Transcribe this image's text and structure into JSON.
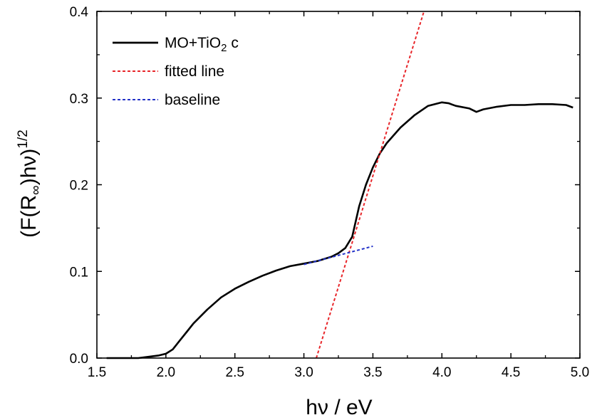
{
  "chart_data": {
    "type": "line",
    "xlabel": "hν / eV",
    "ylabel_base": "(F(R",
    "ylabel_sub": "∞",
    "ylabel_mid": ")hν)",
    "ylabel_sup": "1/2",
    "xlim": [
      1.5,
      5.0
    ],
    "ylim": [
      0.0,
      0.4
    ],
    "xticks": [
      1.5,
      2.0,
      2.5,
      3.0,
      3.5,
      4.0,
      4.5,
      5.0
    ],
    "yticks": [
      0.0,
      0.1,
      0.2,
      0.3,
      0.4
    ],
    "xtick_labels": [
      "1.5",
      "2.0",
      "2.5",
      "3.0",
      "3.5",
      "4.0",
      "4.5",
      "5.0"
    ],
    "ytick_labels": [
      "0.0",
      "0.1",
      "0.2",
      "0.3",
      "0.4"
    ],
    "grid": false,
    "legend_position": "top-left",
    "series": [
      {
        "name_main": "MO+TiO",
        "name_sub": "2",
        "name_tail": " c",
        "color": "#000000",
        "style": "solid",
        "x": [
          1.57,
          1.7,
          1.8,
          1.9,
          1.95,
          2.0,
          2.05,
          2.1,
          2.15,
          2.2,
          2.3,
          2.4,
          2.5,
          2.6,
          2.7,
          2.8,
          2.9,
          3.0,
          3.1,
          3.2,
          3.25,
          3.3,
          3.35,
          3.4,
          3.45,
          3.5,
          3.55,
          3.6,
          3.7,
          3.8,
          3.9,
          4.0,
          4.05,
          4.1,
          4.2,
          4.25,
          4.3,
          4.4,
          4.5,
          4.6,
          4.7,
          4.8,
          4.9,
          4.95
        ],
        "y": [
          0.0,
          0.0,
          0.0,
          0.002,
          0.003,
          0.005,
          0.01,
          0.02,
          0.03,
          0.04,
          0.056,
          0.07,
          0.08,
          0.088,
          0.095,
          0.101,
          0.106,
          0.109,
          0.112,
          0.117,
          0.121,
          0.127,
          0.14,
          0.175,
          0.2,
          0.22,
          0.236,
          0.248,
          0.266,
          0.28,
          0.291,
          0.295,
          0.294,
          0.291,
          0.288,
          0.284,
          0.287,
          0.29,
          0.292,
          0.292,
          0.293,
          0.293,
          0.292,
          0.289
        ]
      },
      {
        "name": "fitted line",
        "color": "#e8262a",
        "style": "dotted",
        "x": [
          3.09,
          3.87
        ],
        "y": [
          0.0,
          0.4
        ]
      },
      {
        "name": "baseline",
        "color": "#2332c8",
        "style": "dotted",
        "x": [
          3.0,
          3.5
        ],
        "y": [
          0.108,
          0.129
        ]
      }
    ]
  }
}
